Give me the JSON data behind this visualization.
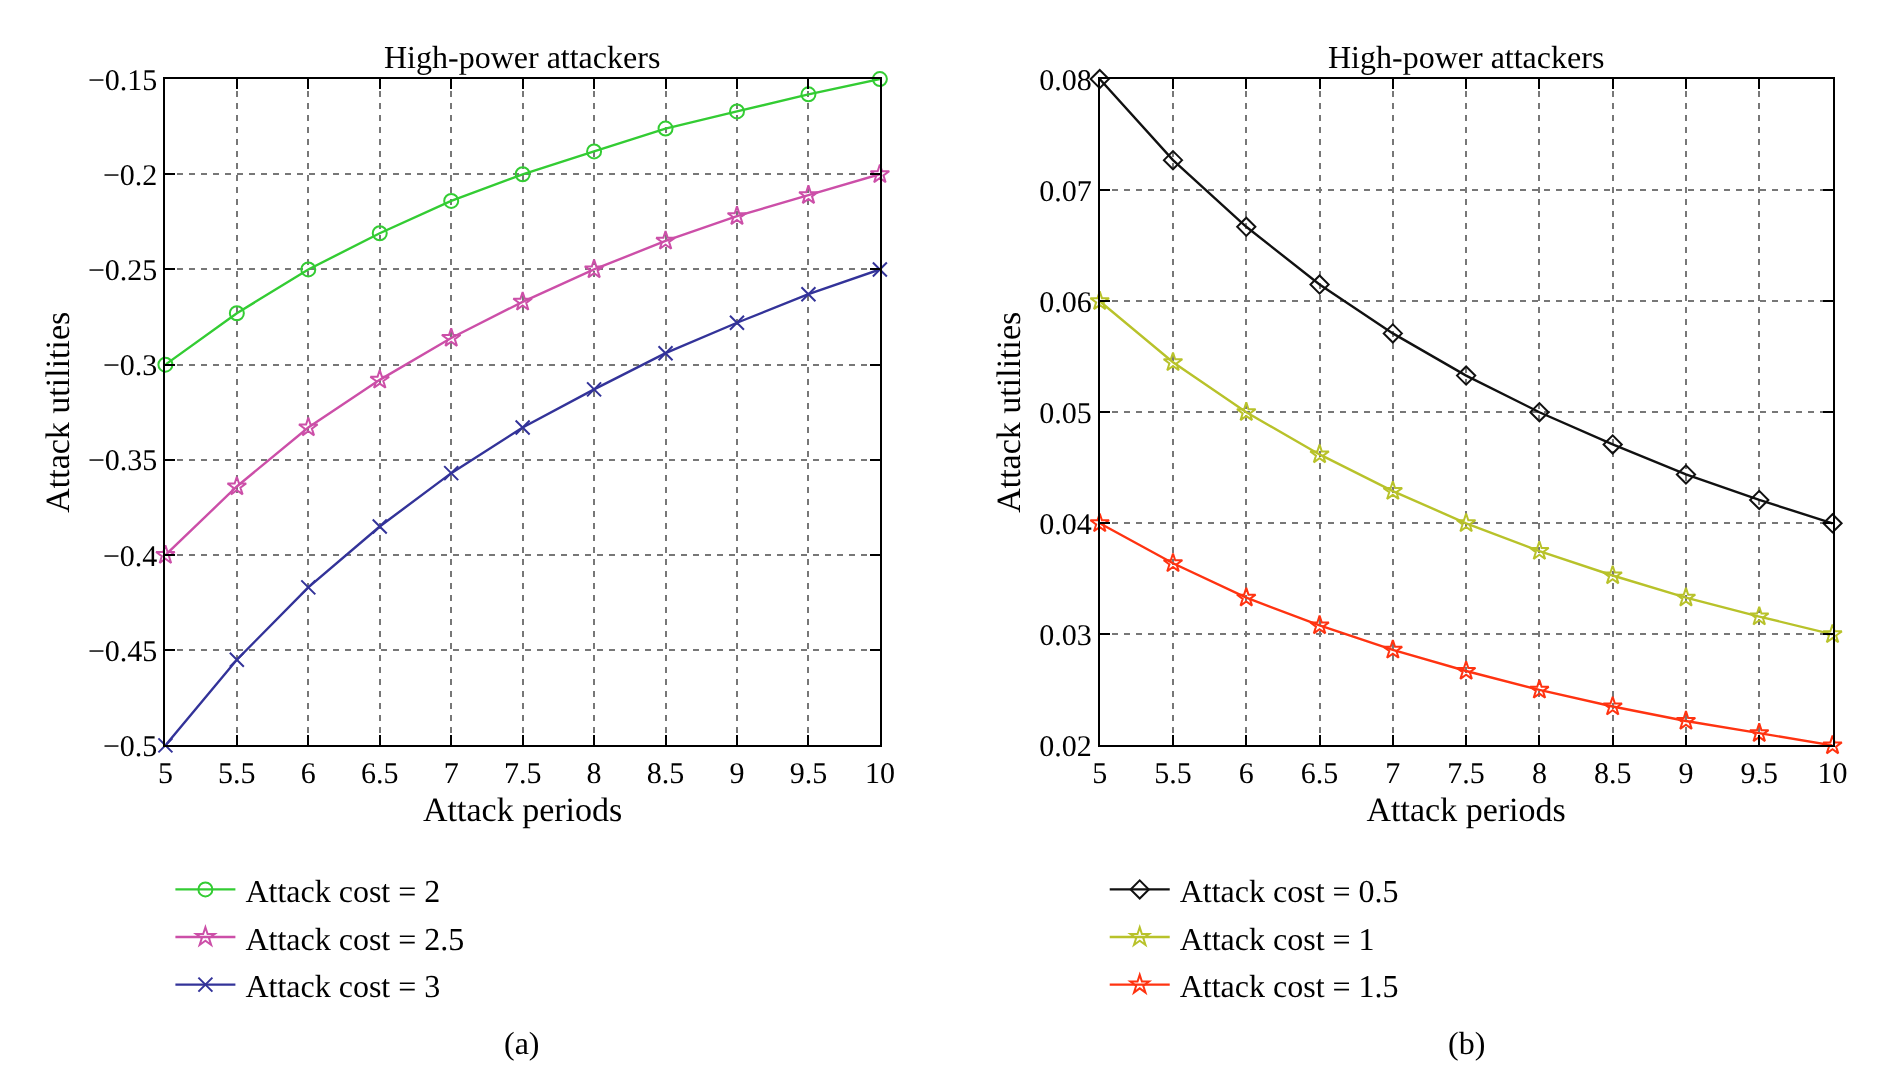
{
  "chart_data": [
    {
      "type": "line",
      "title": "High-power attackers",
      "xlabel": "Attack periods",
      "ylabel": "Attack utilities",
      "x": [
        5,
        5.5,
        6,
        6.5,
        7,
        7.5,
        8,
        8.5,
        9,
        9.5,
        10
      ],
      "xlim": [
        5,
        10
      ],
      "xticks": [
        5,
        5.5,
        6,
        6.5,
        7,
        7.5,
        8,
        8.5,
        9,
        9.5,
        10
      ],
      "ylim": [
        -0.5,
        -0.15
      ],
      "yticks": [
        -0.5,
        -0.45,
        -0.4,
        -0.35,
        -0.3,
        -0.25,
        -0.2,
        -0.15
      ],
      "grid": true,
      "legend": "bottom",
      "line_style": "solid",
      "annotations": [
        "(a)"
      ],
      "series": [
        {
          "name": "Attack cost = 2",
          "color": "#33cc33",
          "marker": "circle",
          "values": [
            -0.3,
            -0.273,
            -0.25,
            -0.231,
            -0.214,
            -0.2,
            -0.188,
            -0.176,
            -0.167,
            -0.158,
            -0.15
          ]
        },
        {
          "name": "Attack cost = 2.5",
          "color": "#cc4fa8",
          "marker": "star",
          "values": [
            -0.4,
            -0.364,
            -0.333,
            -0.308,
            -0.286,
            -0.267,
            -0.25,
            -0.235,
            -0.222,
            -0.211,
            -0.2
          ]
        },
        {
          "name": "Attack cost = 3",
          "color": "#333399",
          "marker": "cross",
          "values": [
            -0.5,
            -0.455,
            -0.417,
            -0.385,
            -0.357,
            -0.333,
            -0.313,
            -0.294,
            -0.278,
            -0.263,
            -0.25
          ]
        }
      ]
    },
    {
      "type": "line",
      "title": "High-power attackers",
      "xlabel": "Attack periods",
      "ylabel": "Attack utilities",
      "x": [
        5,
        5.5,
        6,
        6.5,
        7,
        7.5,
        8,
        8.5,
        9,
        9.5,
        10
      ],
      "xlim": [
        5,
        10
      ],
      "xticks": [
        5,
        5.5,
        6,
        6.5,
        7,
        7.5,
        8,
        8.5,
        9,
        9.5,
        10
      ],
      "ylim": [
        0.02,
        0.08
      ],
      "yticks": [
        0.02,
        0.03,
        0.04,
        0.05,
        0.06,
        0.07,
        0.08
      ],
      "grid": true,
      "legend": "bottom",
      "line_style": "solid",
      "annotations": [
        "(b)"
      ],
      "series": [
        {
          "name": "Attack cost = 0.5",
          "color": "#111111",
          "marker": "diamond",
          "values": [
            0.08,
            0.0727,
            0.0667,
            0.0615,
            0.0571,
            0.0533,
            0.05,
            0.0471,
            0.0444,
            0.0421,
            0.04
          ]
        },
        {
          "name": "Attack cost = 1",
          "color": "#b8c22a",
          "marker": "star",
          "values": [
            0.06,
            0.0545,
            0.05,
            0.0462,
            0.0429,
            0.04,
            0.0375,
            0.0353,
            0.0333,
            0.0316,
            0.03
          ]
        },
        {
          "name": "Attack cost = 1.5",
          "color": "#ff3311",
          "marker": "star",
          "values": [
            0.04,
            0.0364,
            0.0333,
            0.0308,
            0.0286,
            0.0267,
            0.025,
            0.0235,
            0.0222,
            0.0211,
            0.02
          ]
        }
      ]
    }
  ]
}
